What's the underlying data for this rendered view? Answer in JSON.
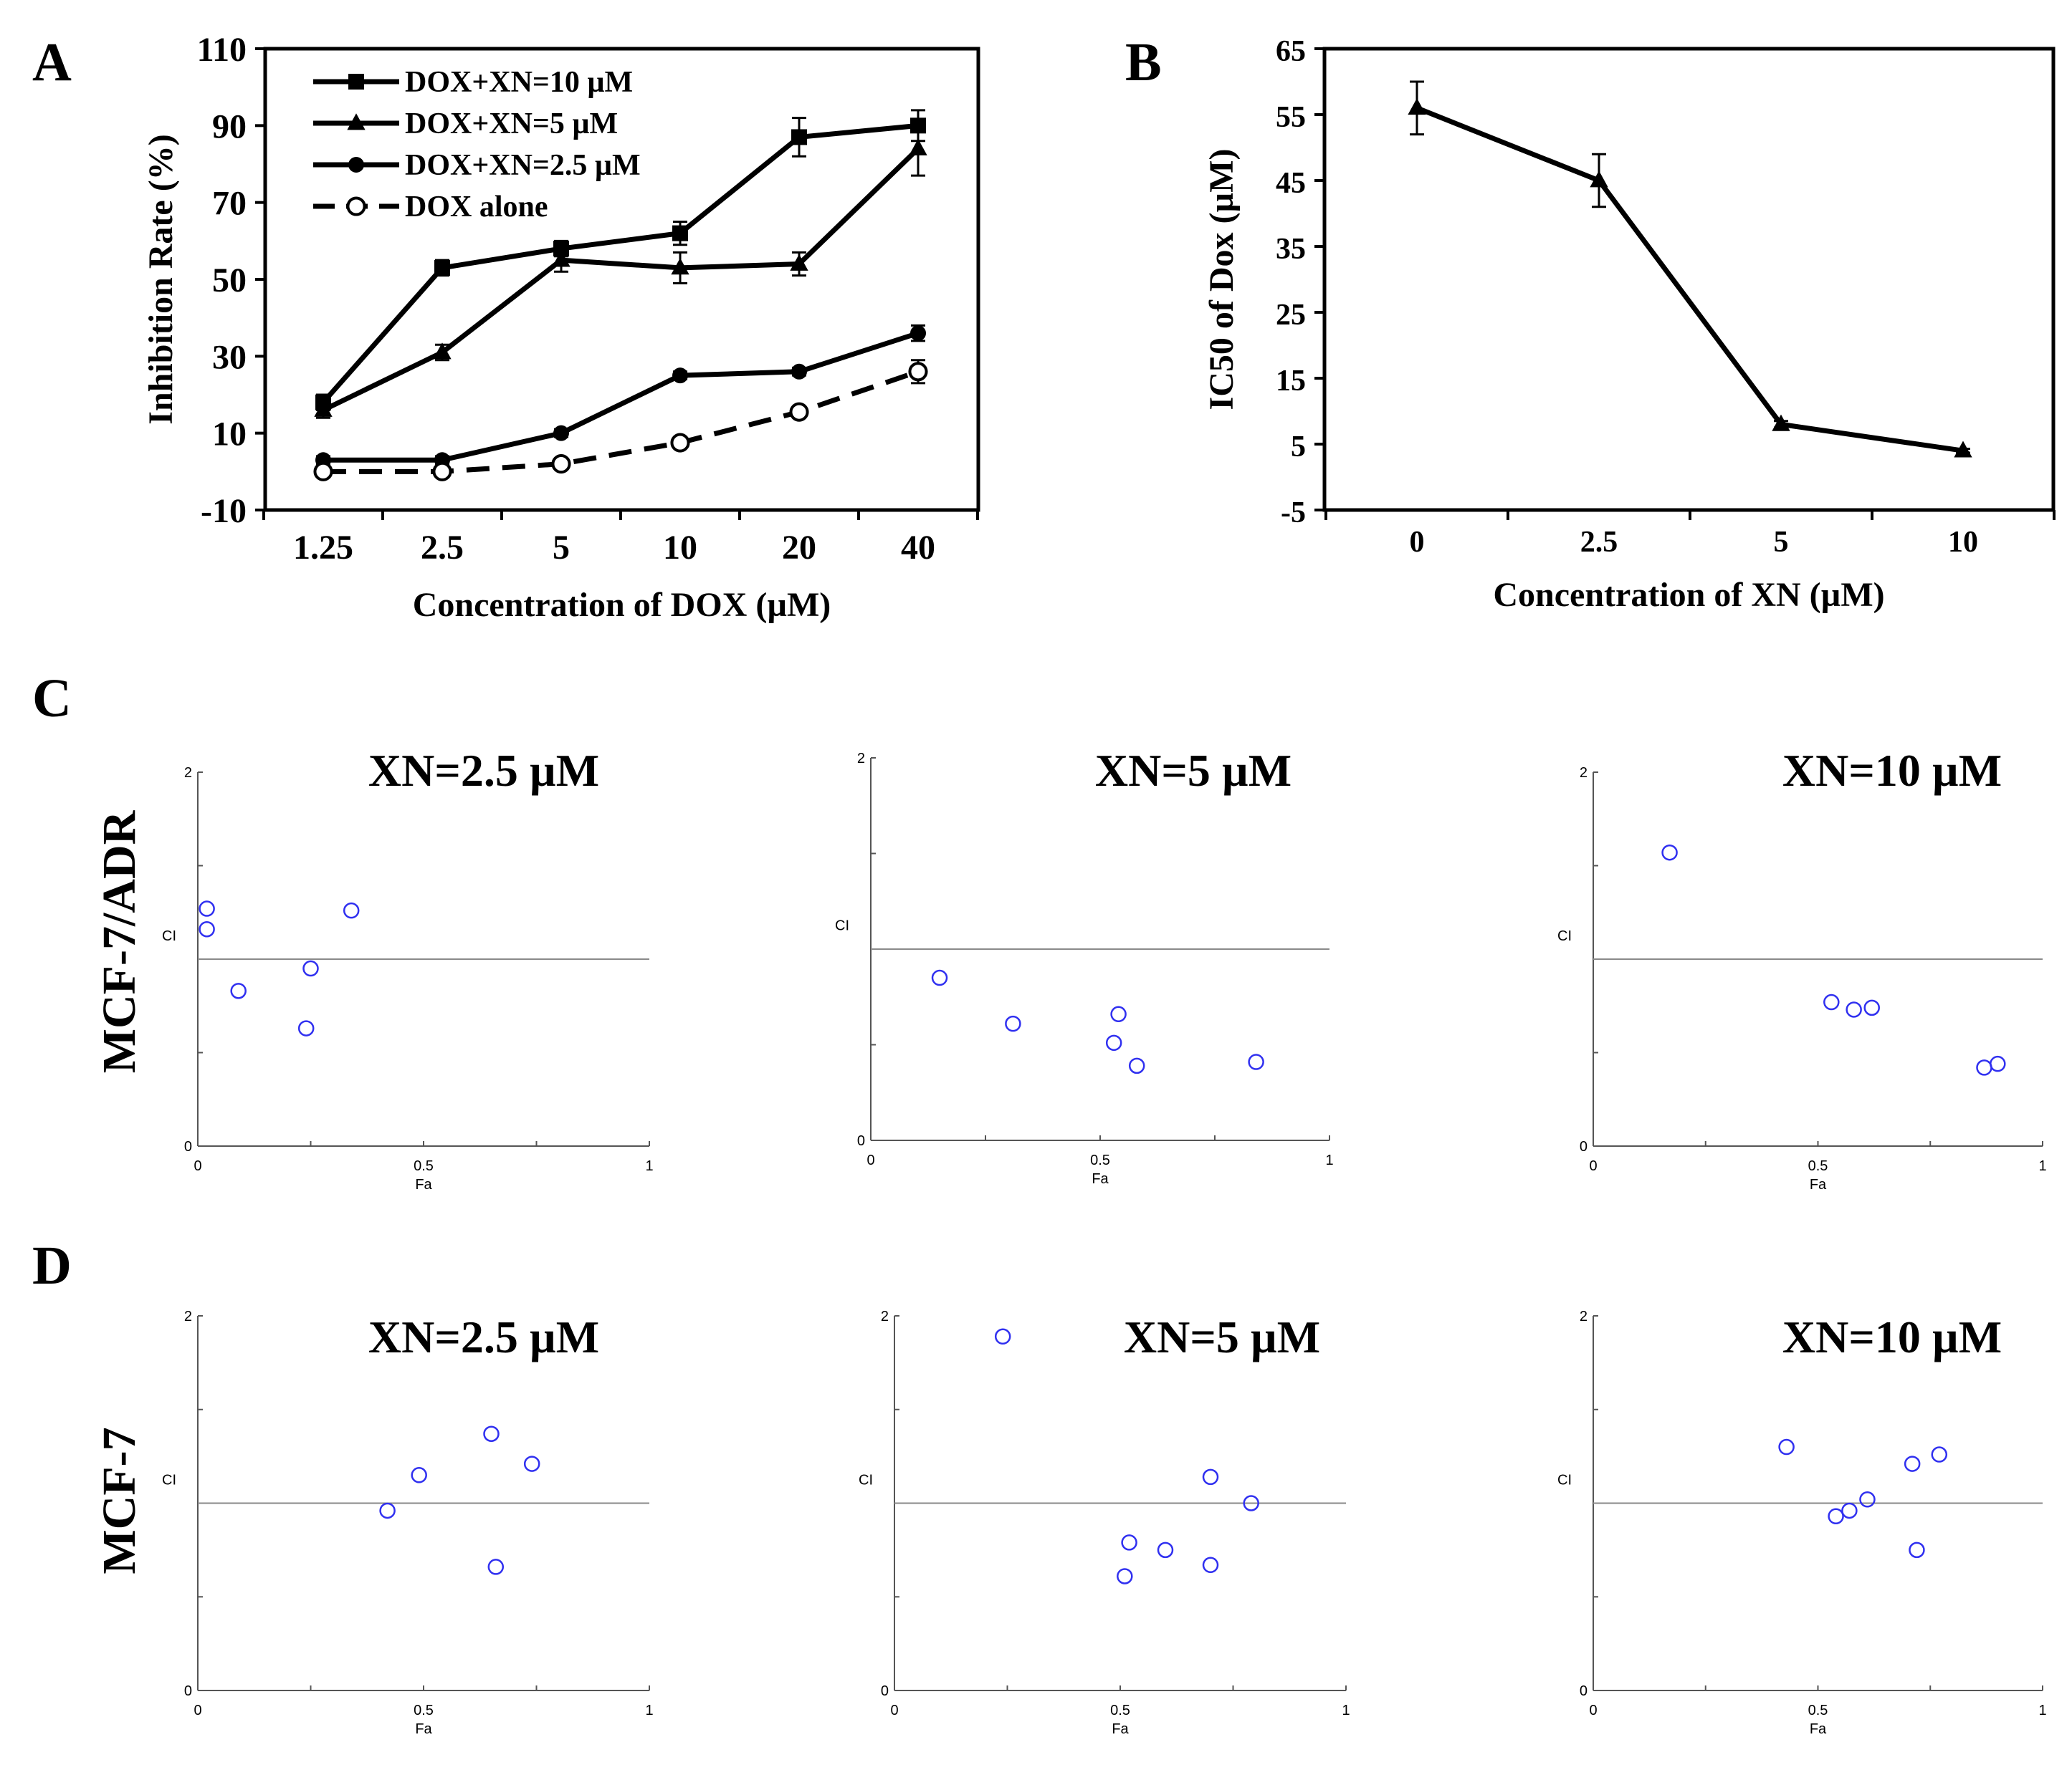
{
  "panel_letters": {
    "a": "A",
    "b": "B",
    "c": "C",
    "d": "D"
  },
  "row_labels": {
    "c": "MCF-7/ADR",
    "d": "MCF-7"
  },
  "chart_data": [
    {
      "id": "A",
      "type": "line",
      "xlabel": "Concentration of DOX (µM)",
      "ylabel": "Inhibition Rate (%)",
      "categories": [
        "1.25",
        "2.5",
        "5",
        "10",
        "20",
        "40"
      ],
      "ylim": [
        -10,
        110
      ],
      "yticks": [
        "110",
        "90",
        "70",
        "50",
        "30",
        "10",
        "-10"
      ],
      "series": [
        {
          "name": "DOX+XN=10 µM",
          "marker": "square",
          "dash": false,
          "values": [
            18,
            53,
            58,
            62,
            87,
            90
          ],
          "errors": [
            2,
            2,
            2,
            3,
            5,
            4
          ]
        },
        {
          "name": "DOX+XN=5 µM",
          "marker": "triangle",
          "dash": false,
          "values": [
            16,
            31,
            55,
            53,
            54,
            84
          ],
          "errors": [
            2,
            2,
            3,
            4,
            3,
            7
          ]
        },
        {
          "name": "DOX+XN=2.5 µM",
          "marker": "circle",
          "dash": false,
          "values": [
            3,
            3,
            10,
            25,
            26,
            36
          ],
          "errors": [
            1,
            1,
            1,
            1,
            1,
            2
          ]
        },
        {
          "name": "DOX alone",
          "marker": "open-circle",
          "dash": true,
          "values": [
            0,
            0,
            2,
            7.5,
            15.5,
            26
          ],
          "errors": [
            0.5,
            0.5,
            0.5,
            0.5,
            1,
            3
          ]
        }
      ]
    },
    {
      "id": "B",
      "type": "line",
      "xlabel": "Concentration of XN (µM)",
      "ylabel": "IC50 of Dox (µM)",
      "categories": [
        "0",
        "2.5",
        "5",
        "10"
      ],
      "ylim": [
        -5,
        65
      ],
      "yticks": [
        "65",
        "55",
        "45",
        "35",
        "25",
        "15",
        "5",
        "-5"
      ],
      "series": [
        {
          "name": "IC50",
          "marker": "triangle",
          "values": [
            56,
            45,
            8,
            4
          ],
          "errors": [
            4,
            4,
            0.5,
            0.3
          ]
        }
      ]
    },
    {
      "id": "C1",
      "type": "scatter",
      "title": "XN=2.5 µM",
      "xlabel": "Fa",
      "ylabel": "CI",
      "xticks": [
        "0",
        "0.5",
        "1"
      ],
      "yticks": [
        "0",
        "2"
      ],
      "xlim": [
        0,
        1
      ],
      "ylim": [
        0,
        2
      ],
      "reference_y": 1,
      "points": [
        [
          0.02,
          1.27
        ],
        [
          0.02,
          1.16
        ],
        [
          0.09,
          0.83
        ],
        [
          0.25,
          0.95
        ],
        [
          0.24,
          0.63
        ],
        [
          0.34,
          1.26
        ]
      ]
    },
    {
      "id": "C2",
      "type": "scatter",
      "title": "XN=5 µM",
      "xlabel": "Fa",
      "ylabel": "CI",
      "xticks": [
        "0",
        "0.5",
        "1"
      ],
      "yticks": [
        "0",
        "2"
      ],
      "xlim": [
        0,
        1
      ],
      "ylim": [
        0,
        2
      ],
      "reference_y": 1,
      "points": [
        [
          0.15,
          0.85
        ],
        [
          0.31,
          0.61
        ],
        [
          0.54,
          0.66
        ],
        [
          0.53,
          0.51
        ],
        [
          0.58,
          0.39
        ],
        [
          0.84,
          0.41
        ]
      ]
    },
    {
      "id": "C3",
      "type": "scatter",
      "title": "XN=10 µM",
      "xlabel": "Fa",
      "ylabel": "CI",
      "xticks": [
        "0",
        "0.5",
        "1"
      ],
      "yticks": [
        "0",
        "2"
      ],
      "xlim": [
        0,
        1
      ],
      "ylim": [
        0,
        2
      ],
      "reference_y": 1,
      "points": [
        [
          0.17,
          1.57
        ],
        [
          0.53,
          0.77
        ],
        [
          0.58,
          0.73
        ],
        [
          0.62,
          0.74
        ],
        [
          0.87,
          0.42
        ],
        [
          0.9,
          0.44
        ]
      ]
    },
    {
      "id": "D1",
      "type": "scatter",
      "title": "XN=2.5 µM",
      "xlabel": "Fa",
      "ylabel": "CI",
      "xticks": [
        "0",
        "0.5",
        "1"
      ],
      "yticks": [
        "0",
        "2"
      ],
      "xlim": [
        0,
        1
      ],
      "ylim": [
        0,
        2
      ],
      "reference_y": 1,
      "points": [
        [
          0.42,
          0.96
        ],
        [
          0.49,
          1.15
        ],
        [
          0.65,
          1.37
        ],
        [
          0.74,
          1.21
        ],
        [
          0.66,
          0.66
        ]
      ]
    },
    {
      "id": "D2",
      "type": "scatter",
      "title": "XN=5 µM",
      "xlabel": "Fa",
      "ylabel": "CI",
      "xticks": [
        "0",
        "0.5",
        "1"
      ],
      "yticks": [
        "0",
        "2"
      ],
      "xlim": [
        0,
        1
      ],
      "ylim": [
        0,
        2
      ],
      "reference_y": 1,
      "points": [
        [
          0.24,
          1.89
        ],
        [
          0.7,
          1.14
        ],
        [
          0.79,
          1.0
        ],
        [
          0.52,
          0.79
        ],
        [
          0.6,
          0.75
        ],
        [
          0.7,
          0.67
        ],
        [
          0.51,
          0.61
        ]
      ]
    },
    {
      "id": "D3",
      "type": "scatter",
      "title": "XN=10 µM",
      "xlabel": "Fa",
      "ylabel": "CI",
      "xticks": [
        "0",
        "0.5",
        "1"
      ],
      "yticks": [
        "0",
        "2"
      ],
      "xlim": [
        0,
        1
      ],
      "ylim": [
        0,
        2
      ],
      "reference_y": 1,
      "points": [
        [
          0.43,
          1.3
        ],
        [
          0.54,
          0.93
        ],
        [
          0.57,
          0.96
        ],
        [
          0.61,
          1.02
        ],
        [
          0.71,
          1.21
        ],
        [
          0.77,
          1.26
        ],
        [
          0.72,
          0.75
        ]
      ]
    }
  ]
}
